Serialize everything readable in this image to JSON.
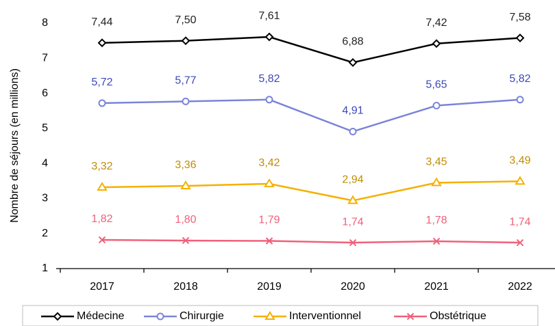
{
  "chart_data": {
    "type": "line",
    "y_label": "Nombre de séjours (en millions)",
    "categories": [
      "2017",
      "2018",
      "2019",
      "2020",
      "2021",
      "2022"
    ],
    "ylim": [
      1,
      8
    ],
    "yticks": [
      1,
      2,
      3,
      4,
      5,
      6,
      7,
      8
    ],
    "grid": false,
    "legend": "bottom",
    "series": [
      {
        "name": "Médecine",
        "color": "#000000",
        "label_color": "#222222",
        "marker": "diamond",
        "values": [
          7.44,
          7.5,
          7.61,
          6.88,
          7.42,
          7.58
        ],
        "value_labels": [
          "7,44",
          "7,50",
          "7,61",
          "6,88",
          "7,42",
          "7,58"
        ]
      },
      {
        "name": "Chirurgie",
        "color": "#7b84d8",
        "label_color": "#3c48b8",
        "marker": "circle",
        "values": [
          5.72,
          5.77,
          5.82,
          4.91,
          5.65,
          5.82
        ],
        "value_labels": [
          "5,72",
          "5,77",
          "5,82",
          "4,91",
          "5,65",
          "5,82"
        ]
      },
      {
        "name": "Interventionnel",
        "color": "#f5b000",
        "label_color": "#c08c00",
        "marker": "triangle",
        "values": [
          3.32,
          3.36,
          3.42,
          2.94,
          3.45,
          3.49
        ],
        "value_labels": [
          "3,32",
          "3,36",
          "3,42",
          "2,94",
          "3,45",
          "3,49"
        ]
      },
      {
        "name": "Obstétrique",
        "color": "#f0607a",
        "label_color": "#f0607a",
        "marker": "x",
        "values": [
          1.82,
          1.8,
          1.79,
          1.74,
          1.78,
          1.74
        ],
        "value_labels": [
          "1,82",
          "1,80",
          "1,79",
          "1,74",
          "1,78",
          "1,74"
        ]
      }
    ]
  }
}
